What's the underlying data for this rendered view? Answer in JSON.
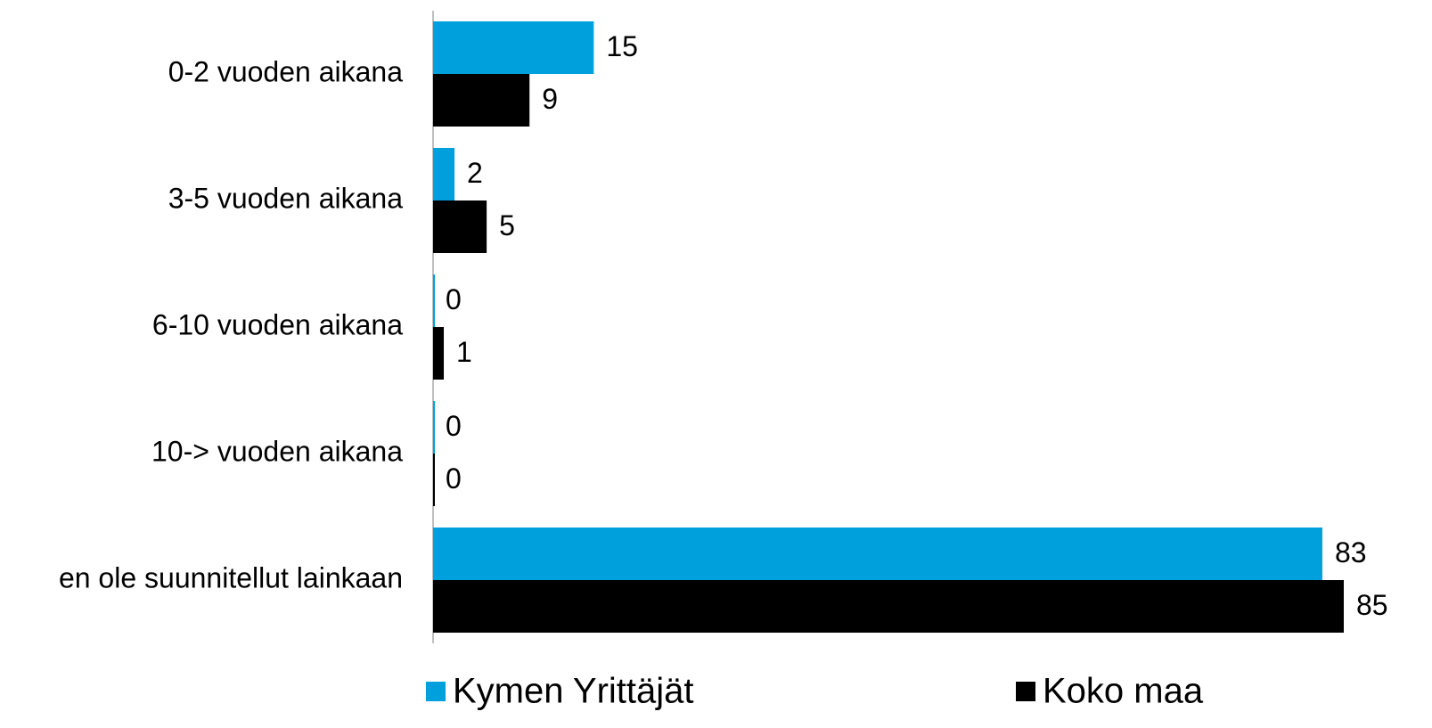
{
  "chart_data": {
    "type": "hbar",
    "categories": [
      "0-2 vuoden aikana",
      "3-5 vuoden aikana",
      "6-10 vuoden aikana",
      "10-> vuoden aikana",
      "en ole suunnitellut lainkaan"
    ],
    "series": [
      {
        "name": "Kymen Yrittäjät",
        "color": "#00a0dc",
        "values": [
          15,
          2,
          0,
          0,
          83
        ]
      },
      {
        "name": "Koko maa",
        "color": "#000000",
        "values": [
          9,
          5,
          1,
          0,
          85
        ]
      }
    ],
    "xlim": [
      0,
      85
    ],
    "legend": "bottom"
  }
}
